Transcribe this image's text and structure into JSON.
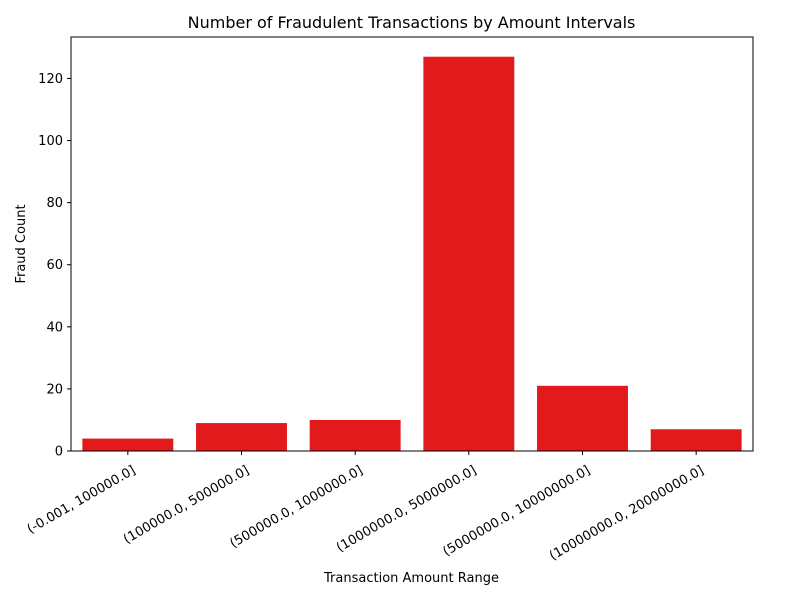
{
  "chart_data": {
    "type": "bar",
    "title": "Number of Fraudulent Transactions by Amount Intervals",
    "xlabel": "Transaction Amount Range",
    "ylabel": "Fraud Count",
    "categories": [
      "(-0.001, 100000.0]",
      "(100000.0, 500000.0]",
      "(500000.0, 1000000.0]",
      "(1000000.0, 5000000.0]",
      "(5000000.0, 10000000.0]",
      "(10000000.0, 20000000.0]"
    ],
    "values": [
      4,
      9,
      10,
      127,
      21,
      7
    ],
    "ylim": [
      0,
      133.35
    ],
    "yticks": [
      0,
      20,
      40,
      60,
      80,
      100,
      120
    ],
    "grid": false,
    "bar_color": "#e31a1c"
  }
}
